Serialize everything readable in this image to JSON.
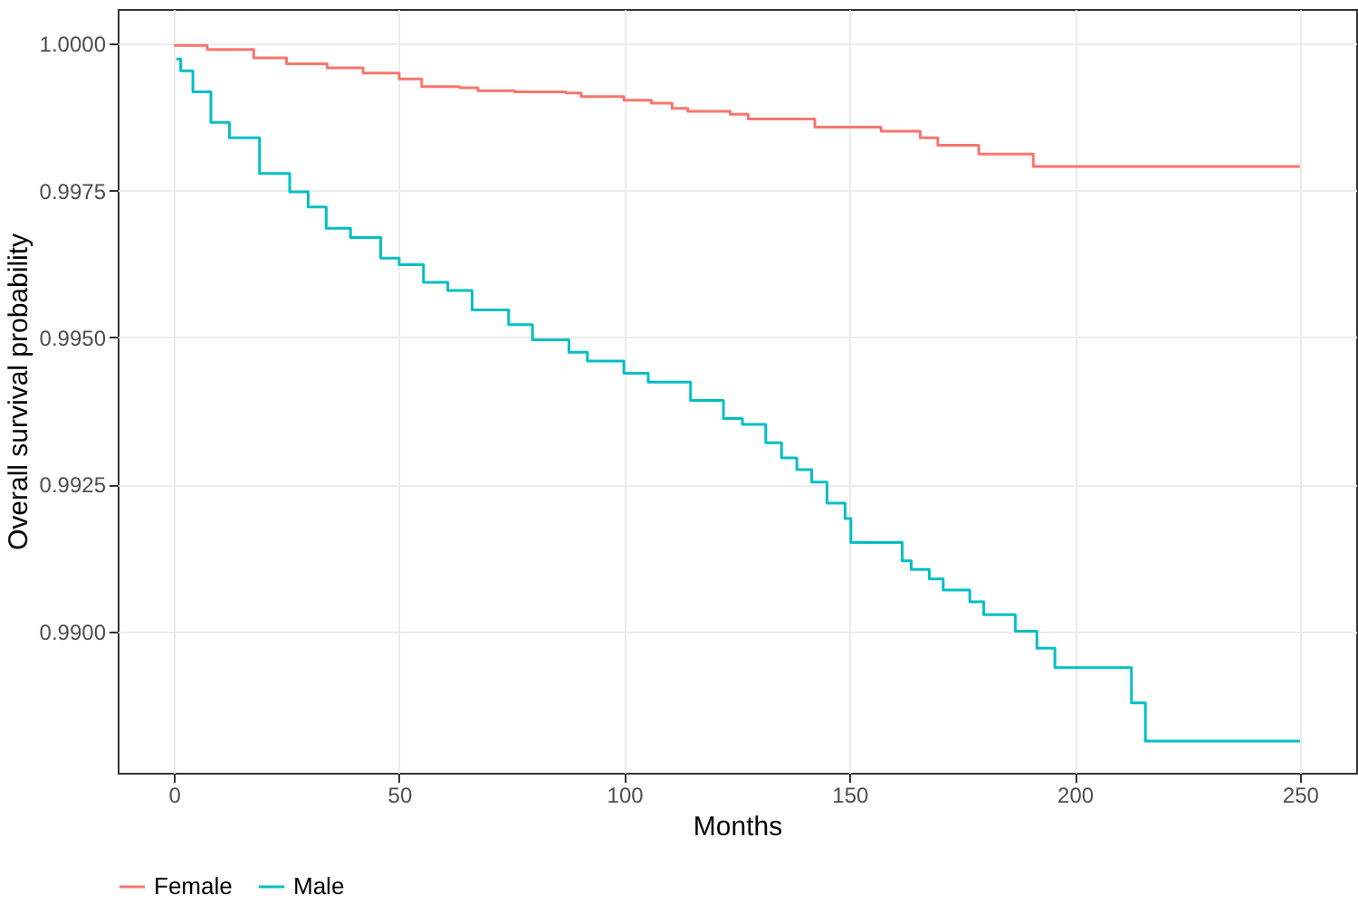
{
  "chart_data": {
    "type": "step",
    "xlabel": "Months",
    "ylabel": "Overall survival probability",
    "xlim": [
      -12.5,
      262.5
    ],
    "xticks": [
      0,
      50,
      100,
      150,
      200,
      250
    ],
    "ylim": [
      0.98759,
      1.00059
    ],
    "yticks": [
      {
        "value": 0.99,
        "label": "0.9900"
      },
      {
        "value": 0.9925,
        "label": "0.9925"
      },
      {
        "value": 0.995,
        "label": "0.9950"
      },
      {
        "value": 0.9975,
        "label": "0.9975"
      },
      {
        "value": 1,
        "label": "1.0000"
      }
    ],
    "grid": true,
    "legend": "bottom",
    "line_style": "solid",
    "marker": "none",
    "series": [
      {
        "name": "Female",
        "color": "#f8766d",
        "x": [
          0,
          7.4,
          17.7,
          25,
          34,
          42,
          50,
          55,
          63.5,
          67.5,
          75.6,
          87,
          90.4,
          99.9,
          106,
          110.6,
          114.1,
          123.5,
          127.5,
          142.3,
          157,
          165.7,
          169.6,
          178.7,
          190.8,
          250
        ],
        "values": [
          0.99997,
          0.9999,
          0.99976,
          0.99966,
          0.99959,
          0.9995,
          0.9994,
          0.99927,
          0.99925,
          0.9992,
          0.99918,
          0.99916,
          0.9991,
          0.99904,
          0.99899,
          0.9989,
          0.99885,
          0.9988,
          0.99872,
          0.99858,
          0.99851,
          0.9984,
          0.99827,
          0.99812,
          0.99791,
          0.99791
        ]
      },
      {
        "name": "Male",
        "color": "#00bfc4",
        "x": [
          0.5,
          1.5,
          4.2,
          8.2,
          12.3,
          19,
          25.7,
          29.8,
          33.8,
          39.2,
          45.9,
          50,
          55.4,
          60.8,
          66.2,
          74.3,
          79.6,
          87.7,
          91.8,
          99.9,
          105.3,
          114.7,
          122,
          126.2,
          131.4,
          134.9,
          138.3,
          141.6,
          145,
          149,
          150.3,
          161.7,
          163.7,
          167.7,
          170.8,
          176.7,
          179.8,
          186.8,
          191.6,
          195.6,
          212.6,
          215.7,
          250
        ],
        "values": [
          0.99974,
          0.99954,
          0.99918,
          0.99866,
          0.9984,
          0.99779,
          0.99748,
          0.99722,
          0.99686,
          0.9967,
          0.99635,
          0.99624,
          0.99594,
          0.9958,
          0.99547,
          0.99522,
          0.99496,
          0.99475,
          0.9946,
          0.99439,
          0.99424,
          0.99393,
          0.99362,
          0.99352,
          0.99321,
          0.99295,
          0.99275,
          0.99254,
          0.99218,
          0.99192,
          0.99151,
          0.9912,
          0.99105,
          0.99089,
          0.9907,
          0.9905,
          0.99028,
          0.99,
          0.98971,
          0.98938,
          0.98878,
          0.98813,
          0.98813
        ]
      }
    ]
  }
}
